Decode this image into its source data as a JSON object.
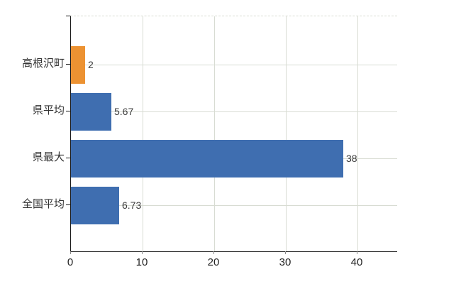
{
  "chart_data": {
    "type": "bar",
    "orientation": "horizontal",
    "title": "",
    "categories": [
      "高根沢町",
      "県平均",
      "県最大",
      "全国平均"
    ],
    "values": [
      2,
      5.67,
      38,
      6.73
    ],
    "value_labels": [
      "2",
      "5.67",
      "38",
      "6.73"
    ],
    "series": [
      {
        "name": "",
        "values": [
          2,
          5.67,
          38,
          6.73
        ]
      }
    ],
    "bar_colors": [
      "#EC9232",
      "#3F6EB0",
      "#3F6EB0",
      "#3F6EB0"
    ],
    "x_ticks": [
      0,
      10,
      20,
      30,
      40
    ],
    "x_tick_labels": [
      "0",
      "10",
      "20",
      "30",
      "40"
    ],
    "xlim": [
      0,
      45.5
    ],
    "xlabel": "",
    "ylabel": "",
    "grid": true,
    "grid_horizontal": true,
    "grid_vertical": true,
    "legend": false
  },
  "colors": {
    "bar_orange": "#EC9232",
    "bar_blue": "#3F6EB0",
    "grid": "#D8DCD3",
    "axis": "#1A1A1A",
    "category_text": "#333333",
    "tick_text": "#222222",
    "value_text": "#3C3C3C",
    "background": "#FFFFFF"
  }
}
